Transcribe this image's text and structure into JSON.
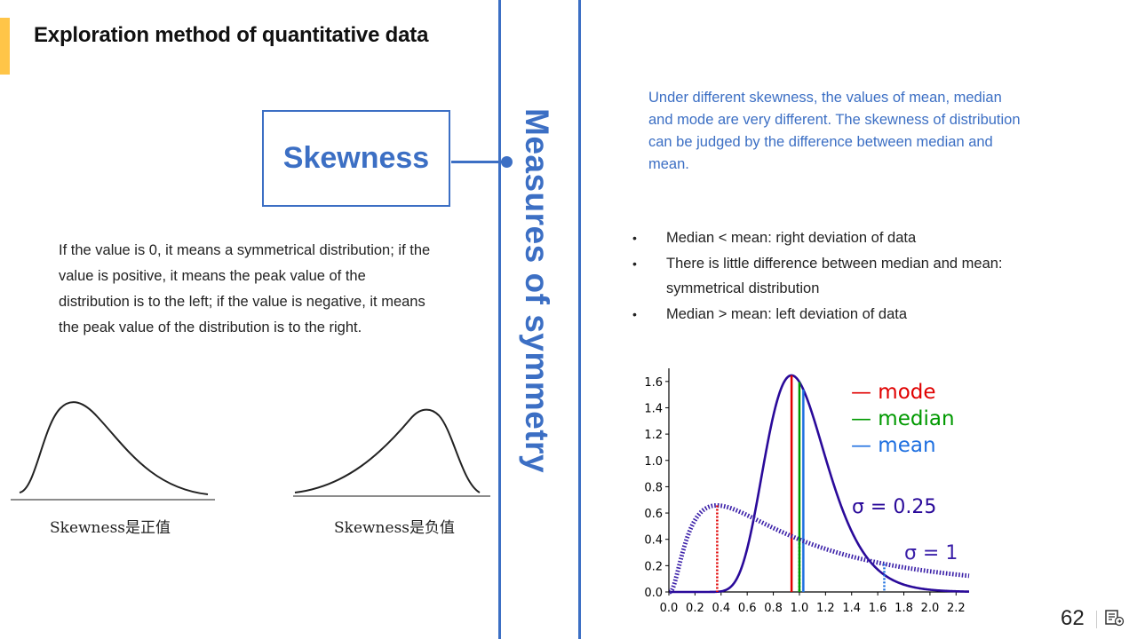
{
  "slide": {
    "title": "Exploration method of quantitative data",
    "section_title": "Measures of symmetry",
    "page_number": "62"
  },
  "left": {
    "concept_box": "Skewness",
    "description": "If the value is 0, it means a symmetrical distribution; if the value is positive, it means the peak value of the distribution is to the left; if the value is negative, it means the peak value of the distribution is to the right.",
    "curve_captions": [
      "Skewness是正值",
      "Skewness是负值"
    ]
  },
  "right": {
    "paragraph": "Under different skewness, the values of mean, median and mode are very different. The skewness of distribution can be judged by the difference between median and mean.",
    "bullets": [
      "Median < mean: right deviation of data",
      "There is little difference between median and mean: symmetrical distribution",
      "Median > mean: left deviation of data"
    ]
  },
  "chart_data": {
    "type": "line",
    "title": "",
    "xlabel": "",
    "ylabel": "",
    "xlim": [
      0.0,
      2.3
    ],
    "ylim": [
      0.0,
      1.7
    ],
    "x_ticks": [
      "0.0",
      "0.2",
      "0.4",
      "0.6",
      "0.8",
      "1.0",
      "1.2",
      "1.4",
      "1.6",
      "1.8",
      "2.0",
      "2.2"
    ],
    "y_ticks": [
      "0.0",
      "0.2",
      "0.4",
      "0.6",
      "0.8",
      "1.0",
      "1.2",
      "1.4",
      "1.6"
    ],
    "legend": [
      {
        "label": "— mode",
        "color": "#E00000"
      },
      {
        "label": "— median",
        "color": "#009900"
      },
      {
        "label": "— mean",
        "color": "#1E6FE0"
      }
    ],
    "series": [
      {
        "name": "σ = 0.25",
        "distribution": "lognormal",
        "sigma": 0.25,
        "style": "solid",
        "color": "#2A0A9A",
        "mode": 0.94,
        "median": 1.0,
        "mean": 1.03
      },
      {
        "name": "σ = 1",
        "distribution": "lognormal",
        "sigma": 1.0,
        "style": "dotted",
        "color": "#3A1FA8",
        "mode": 0.37,
        "median": 1.0,
        "mean": 1.65
      }
    ]
  }
}
